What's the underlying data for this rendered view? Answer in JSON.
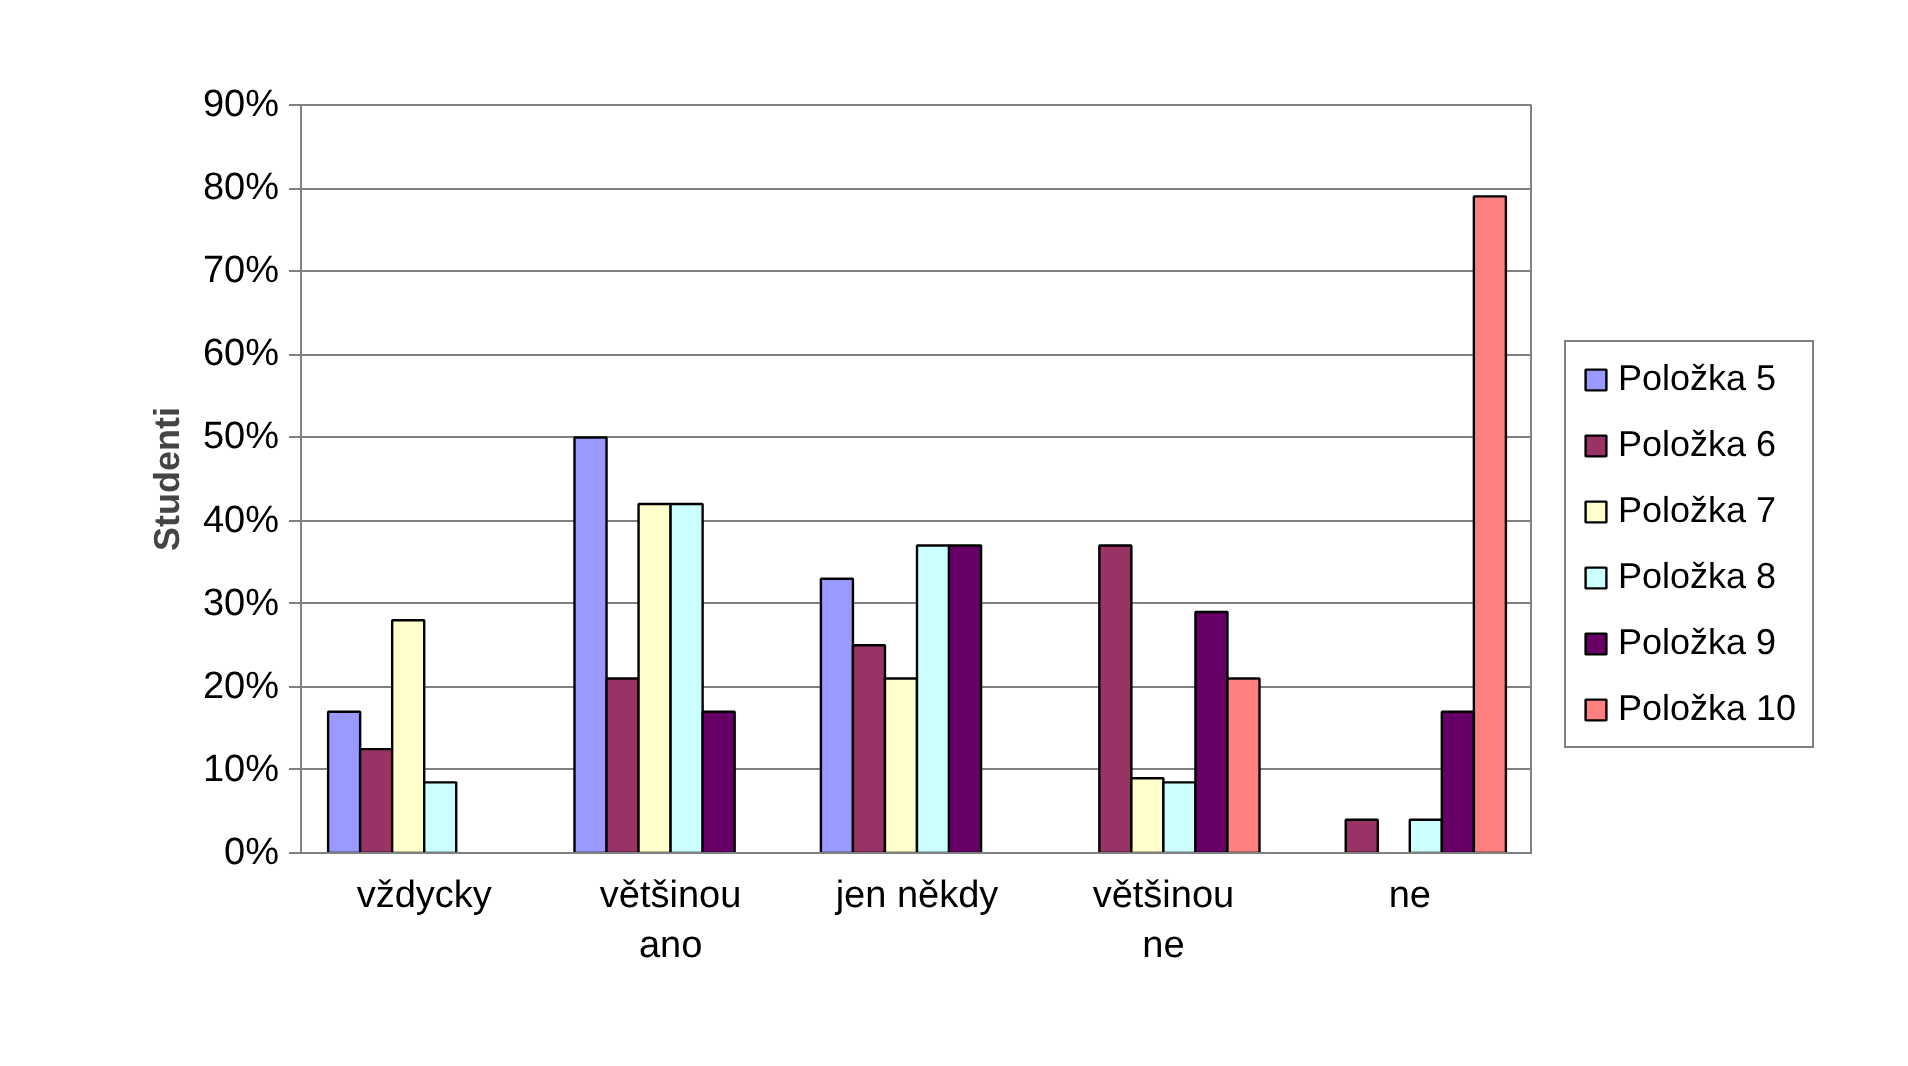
{
  "chart_data": {
    "type": "bar",
    "ylabel": "Studenti",
    "categories": [
      "vždycky",
      "většinou\nano",
      "jen někdy",
      "většinou\nne",
      "ne"
    ],
    "series": [
      {
        "name": "Položka 5",
        "color": "#9999ff",
        "values": [
          17,
          50,
          33,
          null,
          null
        ]
      },
      {
        "name": "Položka 6",
        "color": "#993366",
        "values": [
          12.5,
          21,
          25,
          37,
          4
        ]
      },
      {
        "name": "Položka 7",
        "color": "#ffffcc",
        "values": [
          28,
          42,
          21,
          9,
          null
        ]
      },
      {
        "name": "Položka 8",
        "color": "#ccffff",
        "values": [
          8.5,
          42,
          37,
          8.5,
          4
        ]
      },
      {
        "name": "Položka 9",
        "color": "#660066",
        "values": [
          null,
          17,
          37,
          29,
          17
        ]
      },
      {
        "name": "Položka 10",
        "color": "#ff8080",
        "values": [
          null,
          null,
          null,
          21,
          79
        ]
      }
    ],
    "ylim": [
      0,
      90
    ],
    "yticks": [
      {
        "value": 0,
        "label": "0%"
      },
      {
        "value": 10,
        "label": "10%"
      },
      {
        "value": 20,
        "label": "20%"
      },
      {
        "value": 30,
        "label": "30%"
      },
      {
        "value": 40,
        "label": "40%"
      },
      {
        "value": 50,
        "label": "50%"
      },
      {
        "value": 60,
        "label": "60%"
      },
      {
        "value": 70,
        "label": "70%"
      },
      {
        "value": 80,
        "label": "80%"
      },
      {
        "value": 90,
        "label": "90%"
      }
    ],
    "grid": "y",
    "legend": "right"
  }
}
